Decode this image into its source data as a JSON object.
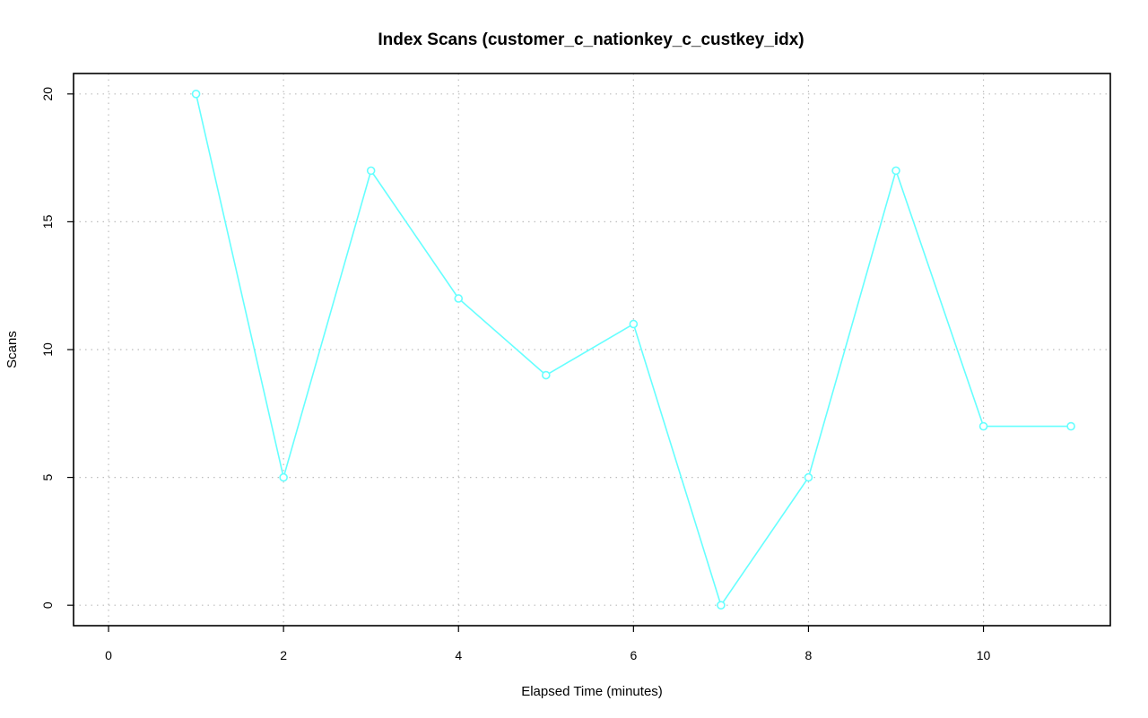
{
  "chart_data": {
    "type": "line",
    "title": "Index Scans (customer_c_nationkey_c_custkey_idx)",
    "xlabel": "Elapsed Time (minutes)",
    "ylabel": "Scans",
    "xlim": [
      -0.4,
      11.45
    ],
    "ylim": [
      -0.8,
      20.8
    ],
    "xticks": [
      0,
      2,
      4,
      6,
      8,
      10
    ],
    "yticks": [
      0,
      5,
      10,
      15,
      20
    ],
    "xtick_labels": [
      "0",
      "2",
      "4",
      "6",
      "8",
      "10"
    ],
    "ytick_labels": [
      "0",
      "5",
      "10",
      "15",
      "20"
    ],
    "grid": true,
    "series": [
      {
        "color": "#66ffff",
        "x": [
          1,
          2,
          3,
          4,
          5,
          6,
          7,
          8,
          9,
          10,
          11
        ],
        "values": [
          20,
          5,
          17,
          12,
          9,
          11,
          0,
          5,
          17,
          7,
          7
        ]
      }
    ]
  }
}
